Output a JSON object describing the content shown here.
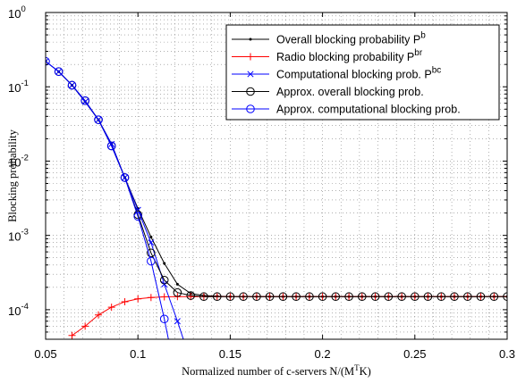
{
  "chart_data": {
    "type": "line",
    "xlabel": "Normalized number of c-servers N/(M^T K)",
    "xlabel_parts": {
      "main": "Normalized number of c-servers N/(M",
      "sup": "T",
      "tail": "K)"
    },
    "ylabel": "Blocking probability",
    "xlim": [
      0.05,
      0.3
    ],
    "ylim": [
      4e-05,
      1
    ],
    "yscale": "log",
    "grid": true,
    "legend_position": "top-right",
    "x_ticks": [
      0.05,
      0.1,
      0.15,
      0.2,
      0.25,
      0.3
    ],
    "x_tick_labels": [
      "0.05",
      "0.1",
      "0.15",
      "0.2",
      "0.25",
      "0.3"
    ],
    "y_ticks": [
      {
        "value": 1,
        "base": "10",
        "exp": "0"
      },
      {
        "value": 0.1,
        "base": "10",
        "exp": "-1"
      },
      {
        "value": 0.01,
        "base": "10",
        "exp": "-2"
      },
      {
        "value": 0.001,
        "base": "10",
        "exp": "-3"
      },
      {
        "value": 0.0001,
        "base": "10",
        "exp": "-4"
      }
    ],
    "series": [
      {
        "name": "Overall blocking probability P^b",
        "legend_main": "Overall blocking probability P",
        "legend_sup": "b",
        "color": "#000000",
        "marker": "dot",
        "x": [
          0.05,
          0.0571,
          0.0643,
          0.0714,
          0.0786,
          0.0857,
          0.0929,
          0.1,
          0.1071,
          0.1143,
          0.1214,
          0.1286,
          0.1357,
          0.1429,
          0.15,
          0.1571,
          0.1643,
          0.1714,
          0.1786,
          0.1857,
          0.1929,
          0.2,
          0.2071,
          0.2143,
          0.2214,
          0.2286,
          0.2357,
          0.2429,
          0.25,
          0.2571,
          0.2643,
          0.2714,
          0.2786,
          0.2857,
          0.2929,
          0.3
        ],
        "y": [
          0.22,
          0.16,
          0.105,
          0.063,
          0.036,
          0.017,
          0.006,
          0.0023,
          0.00095,
          0.00042,
          0.00022,
          0.000165,
          0.000155,
          0.000152,
          0.00015,
          0.00015,
          0.00015,
          0.00015,
          0.00015,
          0.00015,
          0.00015,
          0.00015,
          0.00015,
          0.00015,
          0.00015,
          0.00015,
          0.00015,
          0.00015,
          0.00015,
          0.00015,
          0.00015,
          0.00015,
          0.00015,
          0.00015,
          0.00015,
          0.00015
        ]
      },
      {
        "name": "Radio blocking probability P^br",
        "legend_main": "Radio blocking probability P",
        "legend_sup": "br",
        "color": "#ff0000",
        "marker": "plus",
        "x": [
          0.0643,
          0.0714,
          0.0786,
          0.0857,
          0.0929,
          0.1,
          0.1071,
          0.1143,
          0.1214,
          0.1286,
          0.1357,
          0.1429,
          0.15,
          0.1571,
          0.1643,
          0.1714,
          0.1786,
          0.1857,
          0.1929,
          0.2,
          0.2071,
          0.2143,
          0.2214,
          0.2286,
          0.2357,
          0.2429,
          0.25,
          0.2571,
          0.2643,
          0.2714,
          0.2786,
          0.2857,
          0.2929,
          0.3
        ],
        "y": [
          4.5e-05,
          6e-05,
          8.5e-05,
          0.000108,
          0.000128,
          0.00014,
          0.000146,
          0.000149,
          0.00015,
          0.00015,
          0.00015,
          0.00015,
          0.00015,
          0.00015,
          0.00015,
          0.00015,
          0.00015,
          0.00015,
          0.00015,
          0.00015,
          0.00015,
          0.00015,
          0.00015,
          0.00015,
          0.00015,
          0.00015,
          0.00015,
          0.00015,
          0.00015,
          0.00015,
          0.00015,
          0.00015,
          0.00015,
          0.00015
        ]
      },
      {
        "name": "Computational blocking prob. P^bc",
        "legend_main": "Computational blocking prob. P",
        "legend_sup": "bc",
        "color": "#0000ff",
        "marker": "x",
        "x": [
          0.05,
          0.0571,
          0.0643,
          0.0714,
          0.0786,
          0.0857,
          0.0929,
          0.1,
          0.1071,
          0.1143,
          0.1214,
          0.1286
        ],
        "y": [
          0.22,
          0.16,
          0.105,
          0.063,
          0.036,
          0.017,
          0.006,
          0.0022,
          0.0008,
          0.00022,
          7e-05,
          2e-05
        ]
      },
      {
        "name": "Approx. overall blocking prob.",
        "legend_main": "Approx. overall blocking prob.",
        "legend_sup": "",
        "color": "#000000",
        "marker": "circle",
        "x": [
          0.0571,
          0.0643,
          0.0714,
          0.0786,
          0.0857,
          0.0929,
          0.1,
          0.1071,
          0.1143,
          0.1214,
          0.1286,
          0.1357,
          0.1429,
          0.15,
          0.1571,
          0.1643,
          0.1714,
          0.1786,
          0.1857,
          0.1929,
          0.2,
          0.2071,
          0.2143,
          0.2214,
          0.2286,
          0.2357,
          0.2429,
          0.25,
          0.2571,
          0.2643,
          0.2714,
          0.2786,
          0.2857,
          0.2929,
          0.3
        ],
        "y": [
          0.16,
          0.105,
          0.065,
          0.036,
          0.016,
          0.006,
          0.0019,
          0.00058,
          0.00025,
          0.00017,
          0.000155,
          0.00015,
          0.00015,
          0.00015,
          0.00015,
          0.00015,
          0.00015,
          0.00015,
          0.00015,
          0.00015,
          0.00015,
          0.00015,
          0.00015,
          0.00015,
          0.00015,
          0.00015,
          0.00015,
          0.00015,
          0.00015,
          0.00015,
          0.00015,
          0.00015,
          0.00015,
          0.00015,
          0.00015
        ]
      },
      {
        "name": "Approx. computational blocking prob.",
        "legend_main": "Approx. computational blocking prob.",
        "legend_sup": "",
        "color": "#0000ff",
        "marker": "circle",
        "x": [
          0.05,
          0.0571,
          0.0643,
          0.0714,
          0.0786,
          0.0857,
          0.0929,
          0.1,
          0.1071,
          0.1143,
          0.1214
        ],
        "y": [
          0.22,
          0.16,
          0.105,
          0.065,
          0.036,
          0.016,
          0.006,
          0.0018,
          0.00045,
          7.5e-05,
          1e-05
        ]
      }
    ]
  }
}
